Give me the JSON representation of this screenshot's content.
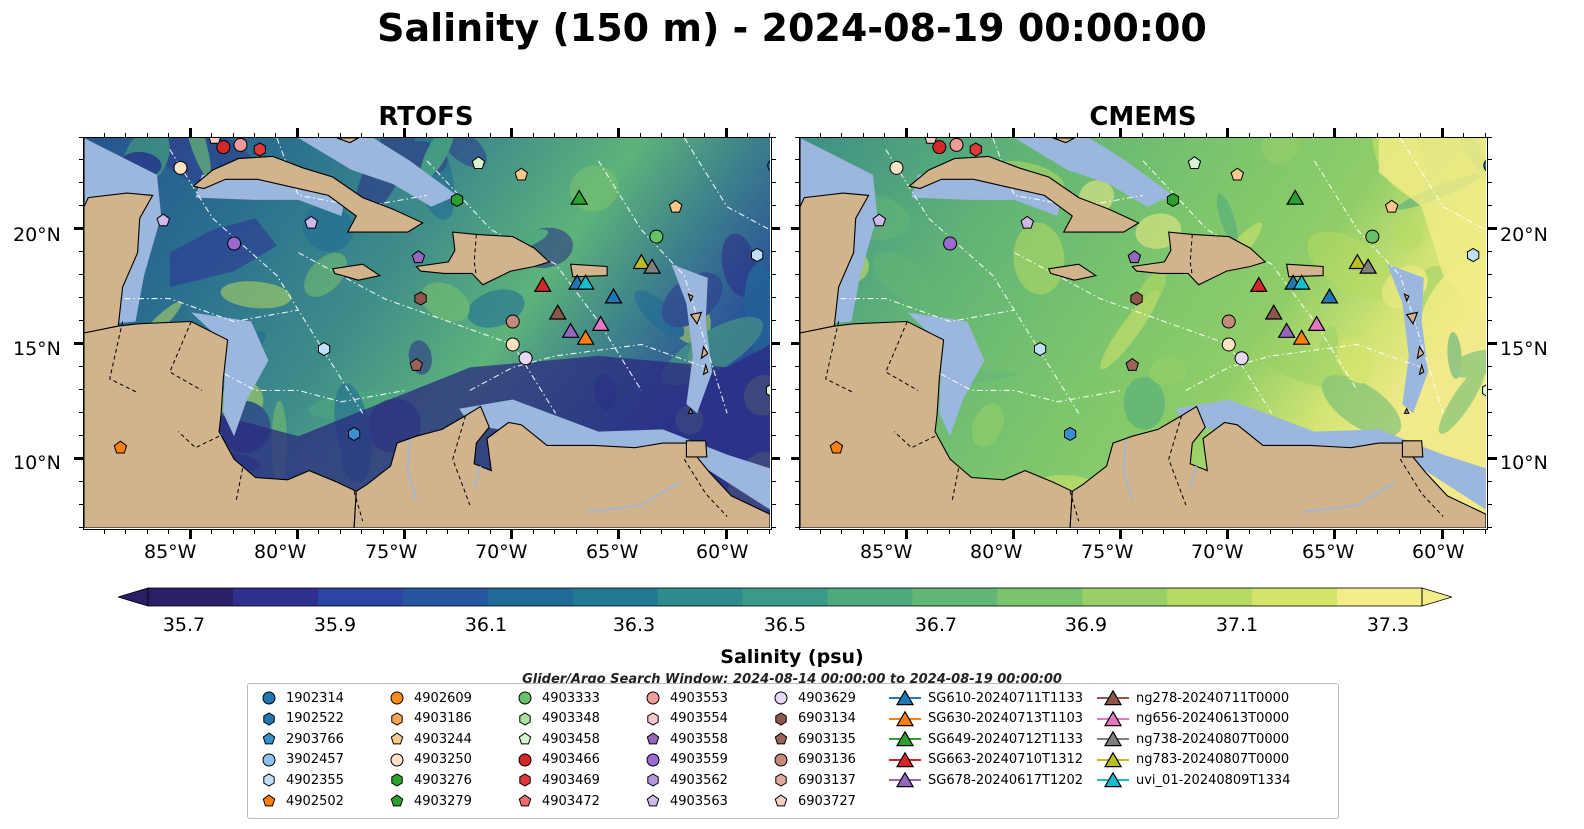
{
  "title": "Salinity (150 m) - 2024-08-19 00:00:00",
  "panels": [
    {
      "title": "RTOFS"
    },
    {
      "title": "CMEMS"
    }
  ],
  "axes": {
    "lon_ticks": [
      "85°W",
      "80°W",
      "75°W",
      "70°W",
      "65°W",
      "60°W"
    ],
    "lat_ticks": [
      "20°N",
      "15°N",
      "10°N"
    ],
    "lon_range": [
      -90,
      -58
    ],
    "lat_range": [
      7,
      24
    ]
  },
  "colorbar": {
    "label": "Salinity (psu)",
    "ticks": [
      "35.7",
      "35.9",
      "36.1",
      "36.3",
      "36.5",
      "36.7",
      "36.9",
      "37.1",
      "37.3"
    ],
    "range": [
      35.7,
      37.4
    ],
    "colors": [
      "#2a1f66",
      "#2f2f8f",
      "#2a45a3",
      "#25569f",
      "#1f6a98",
      "#207a93",
      "#2c8c8c",
      "#399b85",
      "#4daa7e",
      "#63b776",
      "#7bc46e",
      "#98cf67",
      "#b6da62",
      "#d4e46a",
      "#f3ec88"
    ]
  },
  "search_window": "Glider/Argo Search Window: 2024-08-14 00:00:00 to 2024-08-19 00:00:00",
  "legend": [
    {
      "label": "1902314",
      "marker": "circle",
      "color": "#1f77b4"
    },
    {
      "label": "1902522",
      "marker": "hexagon",
      "color": "#1f77b4"
    },
    {
      "label": "2903766",
      "marker": "pentagon",
      "color": "#3a8fd0"
    },
    {
      "label": "3902457",
      "marker": "circle",
      "color": "#8ec2e8"
    },
    {
      "label": "4902355",
      "marker": "hexagon",
      "color": "#bfe0f7"
    },
    {
      "label": "4902502",
      "marker": "pentagon",
      "color": "#ff7f0e"
    },
    {
      "label": "4902609",
      "marker": "circle",
      "color": "#ff8c1a"
    },
    {
      "label": "4903186",
      "marker": "hexagon",
      "color": "#ffa64d"
    },
    {
      "label": "4903244",
      "marker": "pentagon",
      "color": "#ffc88a"
    },
    {
      "label": "4903250",
      "marker": "circle",
      "color": "#ffe3c4"
    },
    {
      "label": "4903276",
      "marker": "hexagon",
      "color": "#2ca02c"
    },
    {
      "label": "4903279",
      "marker": "pentagon",
      "color": "#2ca02c"
    },
    {
      "label": "4903333",
      "marker": "circle",
      "color": "#66c266"
    },
    {
      "label": "4903348",
      "marker": "hexagon",
      "color": "#a8e0a0"
    },
    {
      "label": "4903458",
      "marker": "pentagon",
      "color": "#d8f5cf"
    },
    {
      "label": "4903466",
      "marker": "circle",
      "color": "#d62728"
    },
    {
      "label": "4903469",
      "marker": "hexagon",
      "color": "#e0393a"
    },
    {
      "label": "4903472",
      "marker": "pentagon",
      "color": "#ee6b6b"
    },
    {
      "label": "4903553",
      "marker": "circle",
      "color": "#f29a9a"
    },
    {
      "label": "4903554",
      "marker": "hexagon",
      "color": "#f9c7c7"
    },
    {
      "label": "4903558",
      "marker": "pentagon",
      "color": "#9467bd"
    },
    {
      "label": "4903559",
      "marker": "circle",
      "color": "#9a6ad0"
    },
    {
      "label": "4903562",
      "marker": "hexagon",
      "color": "#b695dd"
    },
    {
      "label": "4903563",
      "marker": "pentagon",
      "color": "#cfb8ea"
    },
    {
      "label": "4903629",
      "marker": "circle",
      "color": "#e7d8f7"
    },
    {
      "label": "6903134",
      "marker": "hexagon",
      "color": "#8c564b"
    },
    {
      "label": "6903135",
      "marker": "pentagon",
      "color": "#9c6257"
    },
    {
      "label": "6903136",
      "marker": "circle",
      "color": "#c48a7a"
    },
    {
      "label": "6903137",
      "marker": "hexagon",
      "color": "#e3a999"
    },
    {
      "label": "6903727",
      "marker": "pentagon",
      "color": "#f6cfc3"
    },
    {
      "label": "SG610-20240711T1133",
      "marker": "triangle-line",
      "color": "#1f77b4"
    },
    {
      "label": "SG630-20240713T1103",
      "marker": "triangle-line",
      "color": "#ff7f0e"
    },
    {
      "label": "SG649-20240712T1133",
      "marker": "triangle-line",
      "color": "#2ca02c"
    },
    {
      "label": "SG663-20240710T1312",
      "marker": "triangle-line",
      "color": "#d62728"
    },
    {
      "label": "SG678-20240617T1202",
      "marker": "triangle-line",
      "color": "#9467bd"
    },
    {
      "label": "ng278-20240711T0000",
      "marker": "triangle-line",
      "color": "#8c564b"
    },
    {
      "label": "ng656-20240613T0000",
      "marker": "triangle-line",
      "color": "#e377c2"
    },
    {
      "label": "ng738-20240807T0000",
      "marker": "triangle-line",
      "color": "#7f7f7f"
    },
    {
      "label": "ng783-20240807T0000",
      "marker": "triangle-line",
      "color": "#bcbd22"
    },
    {
      "label": "uvi_01-20240809T1334",
      "marker": "triangle-line",
      "color": "#17becf"
    }
  ],
  "float_points": [
    {
      "marker": "circle",
      "color": "#d62728",
      "lon": -83.5,
      "lat": 23.6
    },
    {
      "marker": "circle",
      "color": "#f29a9a",
      "lon": -82.7,
      "lat": 23.7
    },
    {
      "marker": "hexagon",
      "color": "#e0393a",
      "lon": -81.8,
      "lat": 23.5
    },
    {
      "marker": "pentagon",
      "color": "#f6cfc3",
      "lon": -83.9,
      "lat": 24.0
    },
    {
      "marker": "circle",
      "color": "#ffe3c4",
      "lon": -85.5,
      "lat": 22.7
    },
    {
      "marker": "pentagon",
      "color": "#cfb8ea",
      "lon": -86.3,
      "lat": 20.4
    },
    {
      "marker": "circle",
      "color": "#9a6ad0",
      "lon": -83.0,
      "lat": 19.4
    },
    {
      "marker": "pentagon",
      "color": "#cfb8ea",
      "lon": -79.4,
      "lat": 20.3
    },
    {
      "marker": "pentagon",
      "color": "#d8f5cf",
      "lon": -71.6,
      "lat": 22.9
    },
    {
      "marker": "hexagon",
      "color": "#2ca02c",
      "lon": -72.6,
      "lat": 21.3
    },
    {
      "marker": "pentagon",
      "color": "#ffc88a",
      "lon": -69.6,
      "lat": 22.4
    },
    {
      "marker": "pentagon",
      "color": "#9467bd",
      "lon": -74.4,
      "lat": 18.8
    },
    {
      "marker": "hexagon",
      "color": "#8c564b",
      "lon": -74.3,
      "lat": 17.0
    },
    {
      "marker": "pentagon",
      "color": "#9c6257",
      "lon": -74.5,
      "lat": 14.1
    },
    {
      "marker": "circle",
      "color": "#c48a7a",
      "lon": -70.0,
      "lat": 16.0
    },
    {
      "marker": "circle",
      "color": "#ffe3c4",
      "lon": -70.0,
      "lat": 15.0
    },
    {
      "marker": "circle",
      "color": "#e7d8f7",
      "lon": -69.4,
      "lat": 14.4
    },
    {
      "marker": "circle",
      "color": "#66c266",
      "lon": -63.3,
      "lat": 19.7
    },
    {
      "marker": "pentagon",
      "color": "#ffc88a",
      "lon": -62.4,
      "lat": 21.0
    },
    {
      "marker": "hexagon",
      "color": "#bfe0f7",
      "lon": -58.6,
      "lat": 18.9
    },
    {
      "marker": "circle",
      "color": "#1f77b4",
      "lon": -57.8,
      "lat": 22.8
    },
    {
      "marker": "hexagon",
      "color": "#d8f5cf",
      "lon": -57.9,
      "lat": 13.0
    },
    {
      "marker": "hexagon",
      "color": "#bfe0f7",
      "lon": -78.8,
      "lat": 14.8
    },
    {
      "marker": "hexagon",
      "color": "#3a8fd0",
      "lon": -77.4,
      "lat": 11.1
    },
    {
      "marker": "pentagon",
      "color": "#ff7f0e",
      "lon": -88.3,
      "lat": 10.5
    }
  ],
  "glider_points": [
    {
      "color": "#2ca02c",
      "lon": -66.9,
      "lat": 21.4
    },
    {
      "color": "#d62728",
      "lon": -68.6,
      "lat": 17.6
    },
    {
      "color": "#1f77b4",
      "lon": -67.0,
      "lat": 17.7
    },
    {
      "color": "#17becf",
      "lon": -66.6,
      "lat": 17.7
    },
    {
      "color": "#1f77b4",
      "lon": -65.3,
      "lat": 17.1
    },
    {
      "color": "#bcbd22",
      "lon": -64.0,
      "lat": 18.6
    },
    {
      "color": "#7f7f7f",
      "lon": -63.5,
      "lat": 18.4
    },
    {
      "color": "#8c564b",
      "lon": -67.9,
      "lat": 16.4
    },
    {
      "color": "#9467bd",
      "lon": -67.3,
      "lat": 15.6
    },
    {
      "color": "#ff7f0e",
      "lon": -66.6,
      "lat": 15.3
    },
    {
      "color": "#e377c2",
      "lon": -65.9,
      "lat": 15.9
    }
  ]
}
